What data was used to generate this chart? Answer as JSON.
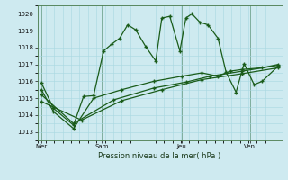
{
  "background_color": "#ceeaf0",
  "grid_color": "#a8d8e0",
  "line_color": "#1a5c1a",
  "title": "Pression niveau de la mer( hPa )",
  "ylim": [
    1012.5,
    1020.5
  ],
  "yticks": [
    1013,
    1014,
    1015,
    1016,
    1017,
    1018,
    1019,
    1020
  ],
  "xlim": [
    -0.1,
    6.0
  ],
  "xtick_positions": [
    0.0,
    1.5,
    3.5,
    5.2
  ],
  "xtick_labels": [
    "Mer",
    "Sam",
    "Jeu",
    "Ven"
  ],
  "vlines": [
    0.0,
    1.5,
    3.5,
    5.2
  ],
  "series1_x": [
    0.0,
    0.3,
    0.8,
    1.05,
    1.3,
    1.55,
    1.75,
    1.95,
    2.15,
    2.35,
    2.6,
    2.85,
    3.0,
    3.2,
    3.45,
    3.6,
    3.75,
    3.95,
    4.15,
    4.4,
    4.6,
    4.85,
    5.05,
    5.3,
    5.5,
    5.9
  ],
  "series1_y": [
    1015.9,
    1014.4,
    1013.4,
    1015.1,
    1015.15,
    1017.8,
    1018.2,
    1018.55,
    1019.35,
    1019.05,
    1018.05,
    1017.2,
    1019.75,
    1019.85,
    1017.8,
    1019.75,
    1020.0,
    1019.5,
    1019.35,
    1018.55,
    1016.55,
    1015.35,
    1017.05,
    1015.8,
    1016.0,
    1016.9
  ],
  "series2_x": [
    0.0,
    0.3,
    0.8,
    1.3,
    2.0,
    2.8,
    3.5,
    4.0,
    4.4,
    4.7,
    5.0,
    5.5,
    5.9
  ],
  "series2_y": [
    1015.5,
    1014.2,
    1013.2,
    1015.0,
    1015.5,
    1016.0,
    1016.3,
    1016.5,
    1016.3,
    1016.6,
    1016.7,
    1016.8,
    1017.0
  ],
  "series3_x": [
    0.0,
    0.8,
    1.8,
    2.8,
    3.6,
    4.2,
    5.0,
    5.9
  ],
  "series3_y": [
    1015.2,
    1013.5,
    1014.9,
    1015.6,
    1015.95,
    1016.3,
    1016.6,
    1016.95
  ],
  "series4_x": [
    0.0,
    1.0,
    2.0,
    3.0,
    4.0,
    5.0,
    5.9
  ],
  "series4_y": [
    1014.8,
    1013.7,
    1014.85,
    1015.5,
    1016.1,
    1016.45,
    1016.8
  ]
}
